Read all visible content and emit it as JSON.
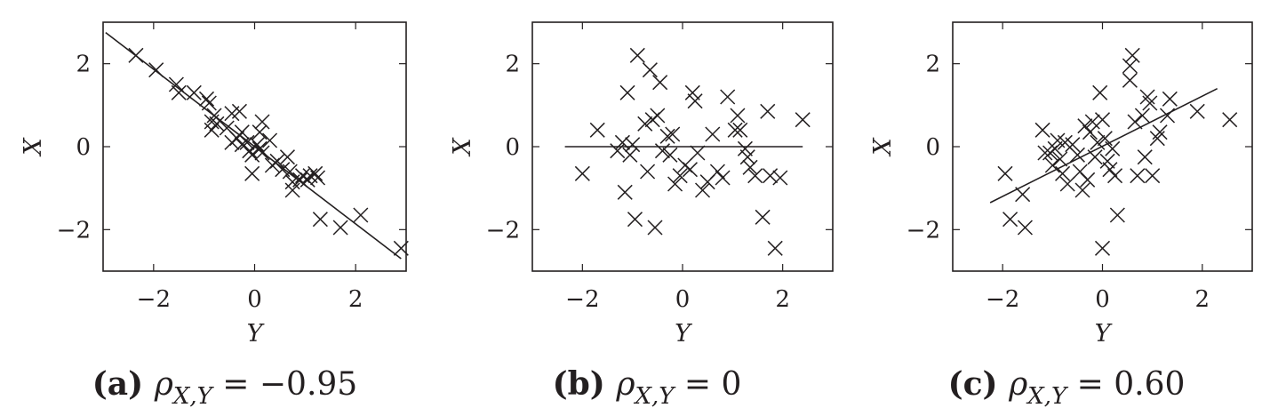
{
  "chart_data": [
    {
      "type": "scatter",
      "panel_label": "(a)",
      "caption_value": "−0.95",
      "xlabel": "Y",
      "ylabel": "X",
      "xlim": [
        -3,
        3
      ],
      "ylim": [
        -3,
        3
      ],
      "xticks": [
        -2,
        0,
        2
      ],
      "yticks": [
        -2,
        0,
        2
      ],
      "xtick_labels": [
        "−2",
        "0",
        "2"
      ],
      "ytick_labels": [
        "−2",
        "0",
        "2"
      ],
      "marker": "x",
      "fit_line": {
        "x": [
          -2.95,
          2.9
        ],
        "y": [
          2.75,
          -2.7
        ]
      },
      "points": [
        {
          "x": -2.35,
          "y": 2.2
        },
        {
          "x": -1.95,
          "y": 1.85
        },
        {
          "x": -1.55,
          "y": 1.5
        },
        {
          "x": -1.5,
          "y": 1.3
        },
        {
          "x": -1.2,
          "y": 1.3
        },
        {
          "x": -0.95,
          "y": 1.15
        },
        {
          "x": -0.9,
          "y": 1.05
        },
        {
          "x": -0.85,
          "y": 0.6
        },
        {
          "x": -0.8,
          "y": 0.75
        },
        {
          "x": -0.75,
          "y": 0.55
        },
        {
          "x": -0.85,
          "y": 0.4
        },
        {
          "x": -0.55,
          "y": 0.45
        },
        {
          "x": -0.45,
          "y": 0.8
        },
        {
          "x": -0.3,
          "y": 0.85
        },
        {
          "x": -0.25,
          "y": 0.35
        },
        {
          "x": -0.35,
          "y": 0.2
        },
        {
          "x": -0.45,
          "y": 0.1
        },
        {
          "x": -0.25,
          "y": 0.05
        },
        {
          "x": -0.15,
          "y": 0.1
        },
        {
          "x": -0.1,
          "y": -0.1
        },
        {
          "x": -0.05,
          "y": -0.2
        },
        {
          "x": 0.05,
          "y": 0.05
        },
        {
          "x": 0.1,
          "y": -0.05
        },
        {
          "x": 0.15,
          "y": -0.15
        },
        {
          "x": 0.1,
          "y": 0.35
        },
        {
          "x": 0.15,
          "y": 0.6
        },
        {
          "x": 0.3,
          "y": 0.15
        },
        {
          "x": -0.05,
          "y": -0.65
        },
        {
          "x": 0.35,
          "y": -0.45
        },
        {
          "x": 0.45,
          "y": -0.35
        },
        {
          "x": 0.55,
          "y": -0.55
        },
        {
          "x": 0.65,
          "y": -0.25
        },
        {
          "x": 0.7,
          "y": -0.6
        },
        {
          "x": 0.75,
          "y": -0.85
        },
        {
          "x": 0.75,
          "y": -1.05
        },
        {
          "x": 0.9,
          "y": -0.8
        },
        {
          "x": 0.95,
          "y": -0.7
        },
        {
          "x": 1.05,
          "y": -0.8
        },
        {
          "x": 1.1,
          "y": -0.7
        },
        {
          "x": 1.2,
          "y": -0.65
        },
        {
          "x": 1.25,
          "y": -0.75
        },
        {
          "x": 1.3,
          "y": -1.75
        },
        {
          "x": 1.7,
          "y": -1.95
        },
        {
          "x": 2.1,
          "y": -1.65
        },
        {
          "x": 2.9,
          "y": -2.45
        }
      ]
    },
    {
      "type": "scatter",
      "panel_label": "(b)",
      "caption_value": "0",
      "xlabel": "Y",
      "ylabel": "X",
      "xlim": [
        -3,
        3
      ],
      "ylim": [
        -3,
        3
      ],
      "xticks": [
        -2,
        0,
        2
      ],
      "yticks": [
        -2,
        0,
        2
      ],
      "xtick_labels": [
        "−2",
        "0",
        "2"
      ],
      "ytick_labels": [
        "−2",
        "0",
        "2"
      ],
      "marker": "x",
      "fit_line": {
        "x": [
          -2.35,
          2.4
        ],
        "y": [
          0,
          0
        ]
      },
      "points": [
        {
          "x": -2.0,
          "y": -0.65
        },
        {
          "x": -1.7,
          "y": 0.4
        },
        {
          "x": -1.3,
          "y": -0.1
        },
        {
          "x": -1.2,
          "y": 0.1
        },
        {
          "x": -1.15,
          "y": -1.1
        },
        {
          "x": -1.1,
          "y": 1.3
        },
        {
          "x": -1.05,
          "y": -0.2
        },
        {
          "x": -1.0,
          "y": 0.05
        },
        {
          "x": -0.95,
          "y": -1.75
        },
        {
          "x": -0.9,
          "y": 2.2
        },
        {
          "x": -0.75,
          "y": 0.55
        },
        {
          "x": -0.7,
          "y": -0.6
        },
        {
          "x": -0.65,
          "y": 1.85
        },
        {
          "x": -0.6,
          "y": 0.65
        },
        {
          "x": -0.55,
          "y": -1.95
        },
        {
          "x": -0.5,
          "y": 0.75
        },
        {
          "x": -0.45,
          "y": 1.55
        },
        {
          "x": -0.4,
          "y": -0.1
        },
        {
          "x": -0.3,
          "y": 0.25
        },
        {
          "x": -0.25,
          "y": -0.2
        },
        {
          "x": -0.2,
          "y": 0.3
        },
        {
          "x": -0.15,
          "y": -0.9
        },
        {
          "x": -0.05,
          "y": -0.7
        },
        {
          "x": 0.05,
          "y": -0.45
        },
        {
          "x": 0.15,
          "y": -0.55
        },
        {
          "x": 0.2,
          "y": 1.3
        },
        {
          "x": 0.25,
          "y": 1.1
        },
        {
          "x": 0.3,
          "y": -0.15
        },
        {
          "x": 0.4,
          "y": -1.05
        },
        {
          "x": 0.5,
          "y": -0.85
        },
        {
          "x": 0.6,
          "y": 0.3
        },
        {
          "x": 0.7,
          "y": -0.6
        },
        {
          "x": 0.8,
          "y": -0.75
        },
        {
          "x": 0.9,
          "y": 1.2
        },
        {
          "x": 1.05,
          "y": 0.4
        },
        {
          "x": 1.1,
          "y": 0.75
        },
        {
          "x": 1.15,
          "y": 0.4
        },
        {
          "x": 1.25,
          "y": -0.05
        },
        {
          "x": 1.3,
          "y": -0.25
        },
        {
          "x": 1.35,
          "y": -0.5
        },
        {
          "x": 1.45,
          "y": -0.7
        },
        {
          "x": 1.6,
          "y": -1.7
        },
        {
          "x": 1.75,
          "y": -0.7
        },
        {
          "x": 1.7,
          "y": 0.85
        },
        {
          "x": 1.85,
          "y": -2.45
        },
        {
          "x": 1.95,
          "y": -0.75
        },
        {
          "x": 2.4,
          "y": 0.65
        }
      ]
    },
    {
      "type": "scatter",
      "panel_label": "(c)",
      "caption_value": "0.60",
      "xlabel": "Y",
      "ylabel": "X",
      "xlim": [
        -3,
        3
      ],
      "ylim": [
        -3,
        3
      ],
      "xticks": [
        -2,
        0,
        2
      ],
      "yticks": [
        -2,
        0,
        2
      ],
      "xtick_labels": [
        "−2",
        "0",
        "2"
      ],
      "ytick_labels": [
        "−2",
        "0",
        "2"
      ],
      "marker": "x",
      "fit_line": {
        "x": [
          -2.25,
          2.3
        ],
        "y": [
          -1.35,
          1.4
        ]
      },
      "points": [
        {
          "x": -1.95,
          "y": -0.65
        },
        {
          "x": -1.85,
          "y": -1.75
        },
        {
          "x": -1.6,
          "y": -1.15
        },
        {
          "x": -1.55,
          "y": -1.95
        },
        {
          "x": -1.2,
          "y": 0.4
        },
        {
          "x": -1.15,
          "y": -0.15
        },
        {
          "x": -1.05,
          "y": -0.15
        },
        {
          "x": -1.0,
          "y": -0.45
        },
        {
          "x": -0.95,
          "y": -0.05
        },
        {
          "x": -0.9,
          "y": 0.15
        },
        {
          "x": -0.85,
          "y": -0.3
        },
        {
          "x": -0.8,
          "y": -0.65
        },
        {
          "x": -0.75,
          "y": 0.1
        },
        {
          "x": -0.7,
          "y": -0.9
        },
        {
          "x": -0.6,
          "y": 0.05
        },
        {
          "x": -0.5,
          "y": -0.2
        },
        {
          "x": -0.45,
          "y": -0.6
        },
        {
          "x": -0.4,
          "y": -1.05
        },
        {
          "x": -0.35,
          "y": 0.5
        },
        {
          "x": -0.3,
          "y": -0.8
        },
        {
          "x": -0.25,
          "y": 0.35
        },
        {
          "x": -0.2,
          "y": 0.6
        },
        {
          "x": -0.15,
          "y": -0.25
        },
        {
          "x": -0.1,
          "y": 0.1
        },
        {
          "x": -0.05,
          "y": 1.3
        },
        {
          "x": 0.0,
          "y": 0.65
        },
        {
          "x": 0.05,
          "y": 0.2
        },
        {
          "x": 0.1,
          "y": -0.35
        },
        {
          "x": 0.15,
          "y": -0.55
        },
        {
          "x": 0.2,
          "y": -0.05
        },
        {
          "x": 0.25,
          "y": -0.7
        },
        {
          "x": 0.3,
          "y": -1.65
        },
        {
          "x": 0.0,
          "y": -2.45
        },
        {
          "x": 0.55,
          "y": 1.95
        },
        {
          "x": 0.6,
          "y": 2.2
        },
        {
          "x": 0.55,
          "y": 1.6
        },
        {
          "x": 0.65,
          "y": 0.6
        },
        {
          "x": 0.7,
          "y": -0.7
        },
        {
          "x": 0.8,
          "y": 0.75
        },
        {
          "x": 0.85,
          "y": -0.25
        },
        {
          "x": 0.9,
          "y": 1.2
        },
        {
          "x": 0.95,
          "y": 1.05
        },
        {
          "x": 1.0,
          "y": -0.7
        },
        {
          "x": 1.1,
          "y": 0.2
        },
        {
          "x": 1.15,
          "y": 0.35
        },
        {
          "x": 1.3,
          "y": 0.75
        },
        {
          "x": 1.35,
          "y": 1.15
        },
        {
          "x": 1.9,
          "y": 0.85
        },
        {
          "x": 2.55,
          "y": 0.65
        }
      ]
    }
  ]
}
